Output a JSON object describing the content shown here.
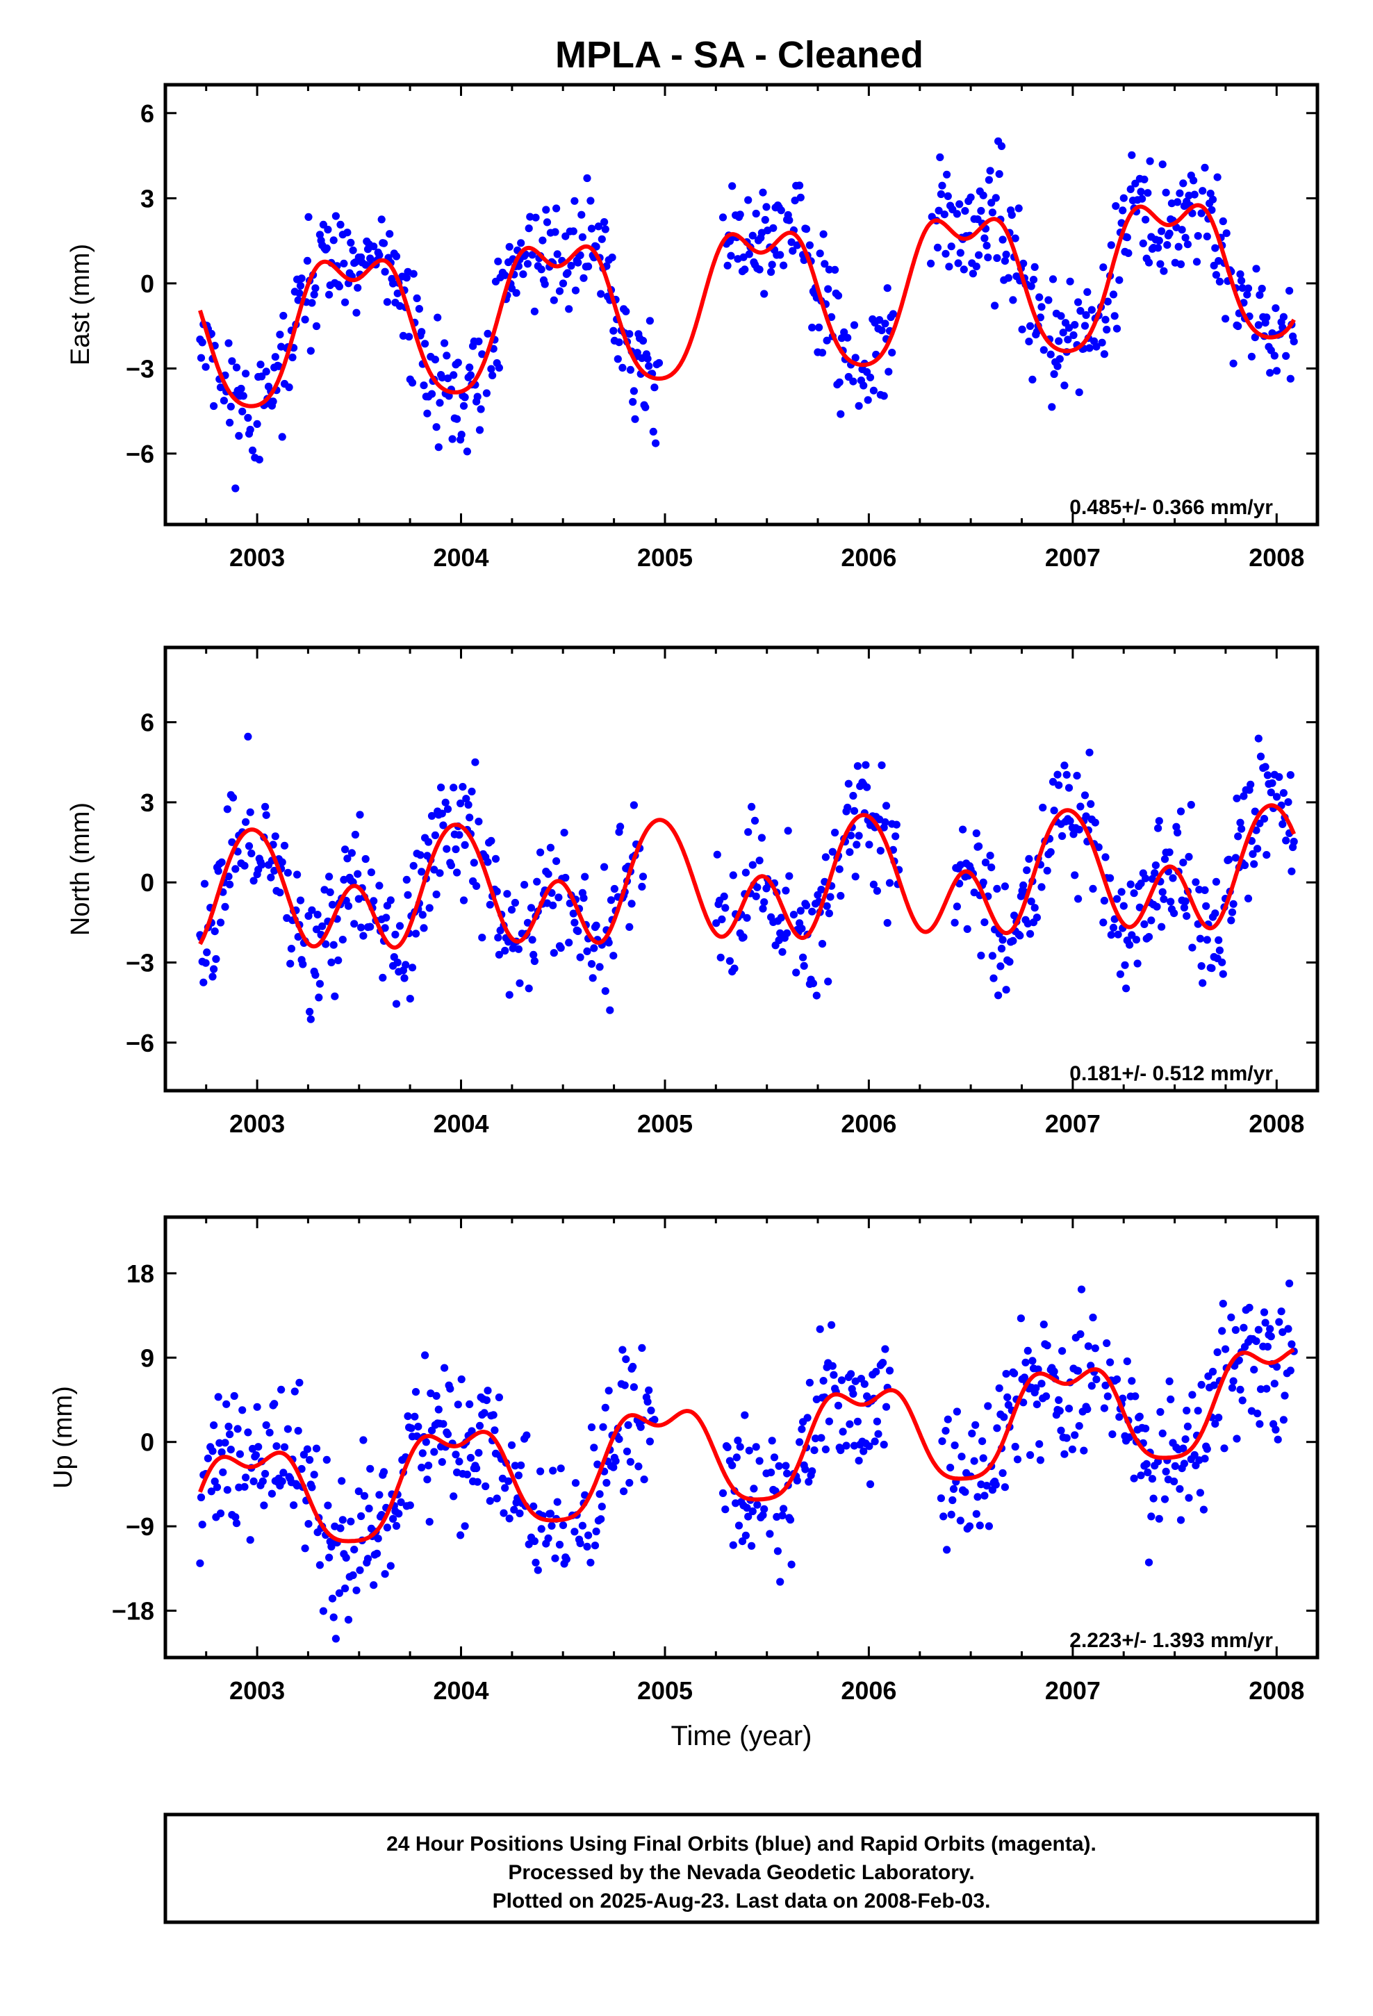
{
  "title": "MPLA  - SA - Cleaned",
  "footer": {
    "lines": [
      "24 Hour Positions Using Final Orbits (blue) and Rapid Orbits (magenta).",
      "Processed by the Nevada Geodetic Laboratory.",
      "Plotted on 2025-Aug-23. Last data on 2008-Feb-03."
    ]
  },
  "colors": {
    "points": "#0000ff",
    "fit": "#ff0000",
    "axis": "#000000"
  },
  "chart_data": [
    {
      "type": "scatter",
      "ylabel": "East (mm)",
      "xlabel": "",
      "rate_label": "0.485+/- 0.366 mm/yr",
      "xlim": [
        2002.55,
        2008.2
      ],
      "ylim": [
        -8.5,
        7
      ],
      "x_ticks": [
        2003,
        2004,
        2005,
        2006,
        2007,
        2008
      ],
      "y_ticks": [
        6,
        3,
        0,
        -3,
        -6
      ],
      "y_tick_labels": [
        "6",
        "3",
        "0",
        "−3",
        "−6"
      ],
      "gaps": [
        [
          2004.98,
          2005.28
        ],
        [
          2006.12,
          2006.3
        ]
      ],
      "fit": {
        "a": -0.4,
        "b": 0.485,
        "t0": 2005.3,
        "amp": 2.5,
        "phase": 2003.22,
        "amp2": 0.7,
        "phase2": 2003.1,
        "ripple": 0.4
      },
      "noise_sd": 1.1,
      "seed": 11
    },
    {
      "type": "scatter",
      "ylabel": "North (mm)",
      "xlabel": "",
      "rate_label": "0.181+/- 0.512 mm/yr",
      "xlim": [
        2002.55,
        2008.2
      ],
      "ylim": [
        -7.8,
        8.8
      ],
      "x_ticks": [
        2003,
        2004,
        2005,
        2006,
        2007,
        2008
      ],
      "y_ticks": [
        6,
        3,
        0,
        -3,
        -6
      ],
      "y_tick_labels": [
        "6",
        "3",
        "0",
        "−3",
        "−6"
      ],
      "gaps": [
        [
          2004.9,
          2005.25
        ],
        [
          2006.15,
          2006.42
        ]
      ],
      "fit": {
        "a": -0.2,
        "b": 0.181,
        "t0": 2005.3,
        "amp": 1.4,
        "phase": 2002.73,
        "amp2": 1.5,
        "phase2": 2002.85,
        "ripple": 0.3
      },
      "noise_sd": 1.3,
      "seed": 23
    },
    {
      "type": "scatter",
      "ylabel": "Up (mm)",
      "xlabel": "Time (year)",
      "rate_label": "2.223+/- 1.393 mm/yr",
      "xlim": [
        2002.55,
        2008.2
      ],
      "ylim": [
        -23,
        24
      ],
      "x_ticks": [
        2003,
        2004,
        2005,
        2006,
        2007,
        2008
      ],
      "y_ticks": [
        18,
        9,
        0,
        -9,
        -18
      ],
      "y_tick_labels": [
        "18",
        "9",
        "0",
        "−9",
        "−18"
      ],
      "gaps": [
        [
          2004.95,
          2005.28
        ],
        [
          2006.12,
          2006.35
        ]
      ],
      "fit": {
        "a": -0.8,
        "b": 2.223,
        "t0": 2005.3,
        "amp": 5.5,
        "phase": 2003.72,
        "amp2": 1.2,
        "phase2": 2003.6,
        "ripple": 1.0
      },
      "noise_sd": 4.2,
      "seed": 37
    }
  ]
}
